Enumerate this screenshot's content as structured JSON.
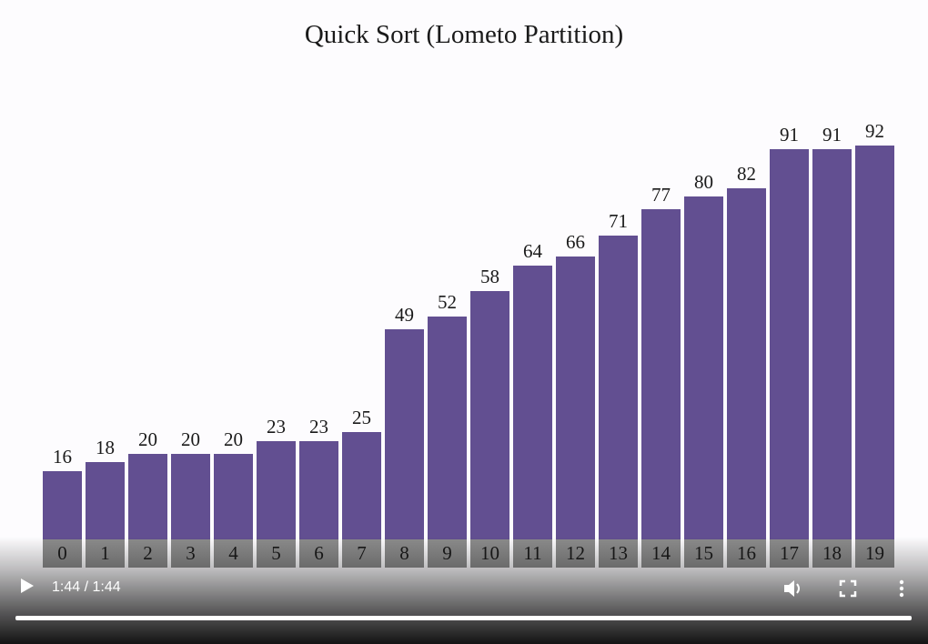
{
  "chart_data": {
    "type": "bar",
    "title": "Quick Sort (Lometo Partition)",
    "categories": [
      "0",
      "1",
      "2",
      "3",
      "4",
      "5",
      "6",
      "7",
      "8",
      "9",
      "10",
      "11",
      "12",
      "13",
      "14",
      "15",
      "16",
      "17",
      "18",
      "19"
    ],
    "values": [
      16,
      18,
      20,
      20,
      20,
      23,
      23,
      25,
      49,
      52,
      58,
      64,
      66,
      71,
      77,
      80,
      82,
      91,
      91,
      92
    ],
    "xlabel": "",
    "ylabel": "",
    "bar_color": "#624f91",
    "index_box_color": "#8c8c8c",
    "grid": false,
    "legend": "none"
  },
  "player": {
    "time": "1:44 / 1:44",
    "progress_pct": 100,
    "icons": [
      "play-icon",
      "volume-icon",
      "fullscreen-icon",
      "more-options-icon"
    ]
  }
}
